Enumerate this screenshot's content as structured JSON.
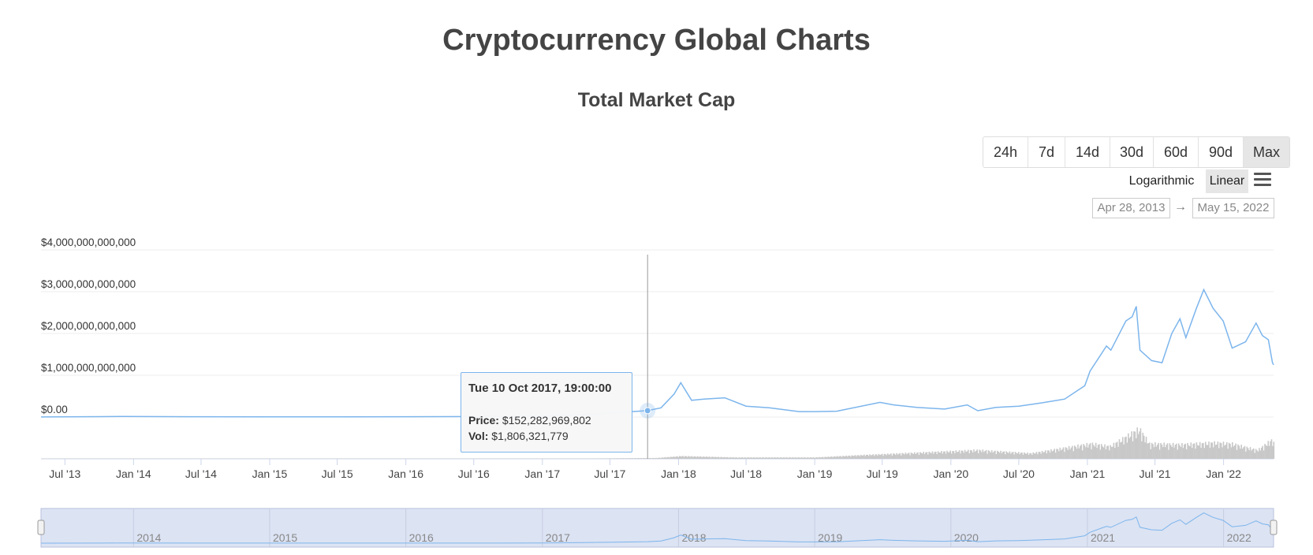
{
  "page": {
    "title": "Cryptocurrency Global Charts"
  },
  "chart_title": "Total Market Cap",
  "range_buttons": [
    {
      "label": "24h",
      "active": false
    },
    {
      "label": "7d",
      "active": false
    },
    {
      "label": "14d",
      "active": false
    },
    {
      "label": "30d",
      "active": false
    },
    {
      "label": "60d",
      "active": false
    },
    {
      "label": "90d",
      "active": false
    },
    {
      "label": "Max",
      "active": true
    }
  ],
  "scale": {
    "logarithmic": "Logarithmic",
    "linear": "Linear",
    "selected": "Linear"
  },
  "date_range": {
    "from": "Apr 28, 2013",
    "arrow": "→",
    "to": "May 15, 2022"
  },
  "tooltip": {
    "date": "Tue 10 Oct 2017, 19:00:00",
    "price_label": "Price:",
    "price_value": "$152,282,969,802",
    "vol_label": "Vol:",
    "vol_value": "$1,806,321,779"
  },
  "chart_data": {
    "type": "line",
    "title": "Total Market Cap",
    "xlabel": "",
    "ylabel": "",
    "x_range": [
      "2013-04-28",
      "2022-05-15"
    ],
    "ylim": [
      -1000000000000,
      4000000000000
    ],
    "y_ticks": [
      0,
      1000000000000,
      2000000000000,
      3000000000000,
      4000000000000
    ],
    "y_tick_labels": [
      "$0.00",
      "$1,000,000,000,000",
      "$2,000,000,000,000",
      "$3,000,000,000,000",
      "$4,000,000,000,000"
    ],
    "x_tick_labels": [
      "Jul '13",
      "Jan '14",
      "Jul '14",
      "Jan '15",
      "Jul '15",
      "Jan '16",
      "Jul '16",
      "Jan '17",
      "Jul '17",
      "Jan '18",
      "Jul '18",
      "Jan '19",
      "Jul '19",
      "Jan '20",
      "Jul '20",
      "Jan '21",
      "Jul '21",
      "Jan '22"
    ],
    "navigator_labels": [
      "2014",
      "2015",
      "2016",
      "2017",
      "2018",
      "2019",
      "2020",
      "2021",
      "2022"
    ],
    "grid": true,
    "line_color": "#7cb5ec",
    "volume_color": "#c8c8c8",
    "highlight": {
      "x": "2017-10-10",
      "y": 152282969802
    },
    "series": [
      {
        "name": "Price",
        "x": [
          "2013-04-28",
          "2013-12-01",
          "2014-06-01",
          "2015-01-01",
          "2015-07-01",
          "2016-01-01",
          "2016-07-01",
          "2017-01-01",
          "2017-05-15",
          "2017-10-10",
          "2017-11-15",
          "2017-12-20",
          "2018-01-07",
          "2018-02-05",
          "2018-03-10",
          "2018-05-05",
          "2018-07-01",
          "2018-09-01",
          "2018-11-20",
          "2019-01-01",
          "2019-03-01",
          "2019-06-25",
          "2019-08-01",
          "2019-10-01",
          "2019-12-15",
          "2020-02-14",
          "2020-03-13",
          "2020-05-01",
          "2020-07-01",
          "2020-09-01",
          "2020-11-01",
          "2020-12-25",
          "2021-01-08",
          "2021-02-21",
          "2021-03-05",
          "2021-04-14",
          "2021-05-01",
          "2021-05-12",
          "2021-05-22",
          "2021-06-22",
          "2021-07-20",
          "2021-08-15",
          "2021-09-06",
          "2021-09-22",
          "2021-10-20",
          "2021-11-09",
          "2021-12-04",
          "2021-12-31",
          "2022-01-24",
          "2022-03-01",
          "2022-03-29",
          "2022-04-15",
          "2022-05-01",
          "2022-05-12",
          "2022-05-15"
        ],
        "values": [
          1500000000.0,
          13000000000.0,
          8000000000.0,
          6000000000.0,
          5000000000.0,
          7000000000.0,
          11000000000.0,
          18000000000.0,
          70000000000.0,
          152000000000.0,
          220000000000.0,
          550000000000.0,
          820000000000.0,
          400000000000.0,
          430000000000.0,
          460000000000.0,
          260000000000.0,
          220000000000.0,
          130000000000.0,
          130000000000.0,
          140000000000.0,
          350000000000.0,
          290000000000.0,
          230000000000.0,
          190000000000.0,
          290000000000.0,
          150000000000.0,
          230000000000.0,
          260000000000.0,
          340000000000.0,
          430000000000.0,
          750000000000.0,
          1100000000000.0,
          1700000000000.0,
          1600000000000.0,
          2300000000000.0,
          2400000000000.0,
          2650000000000.0,
          1600000000000.0,
          1350000000000.0,
          1300000000000.0,
          2000000000000.0,
          2350000000000.0,
          1900000000000.0,
          2600000000000.0,
          3050000000000.0,
          2600000000000.0,
          2300000000000.0,
          1650000000000.0,
          1800000000000.0,
          2250000000000.0,
          1950000000000.0,
          1850000000000.0,
          1300000000000.0,
          1250000000000.0
        ]
      },
      {
        "name": "Vol",
        "x": [
          "2013-04-28",
          "2016-12-31",
          "2017-11-01",
          "2018-01-07",
          "2018-06-01",
          "2019-01-01",
          "2019-05-01",
          "2020-03-12",
          "2020-08-01",
          "2021-01-11",
          "2021-03-01",
          "2021-05-19",
          "2021-06-15",
          "2021-09-07",
          "2021-12-04",
          "2022-01-22",
          "2022-04-01",
          "2022-05-12",
          "2022-05-15"
        ],
        "values": [
          100000000.0,
          1000000000.0,
          18000000000.0,
          60000000000.0,
          30000000000.0,
          30000000000.0,
          80000000000.0,
          190000000000.0,
          120000000000.0,
          330000000000.0,
          270000000000.0,
          650000000000.0,
          330000000000.0,
          310000000000.0,
          350000000000.0,
          330000000000.0,
          190000000000.0,
          430000000000.0,
          300000000000.0
        ]
      }
    ]
  }
}
